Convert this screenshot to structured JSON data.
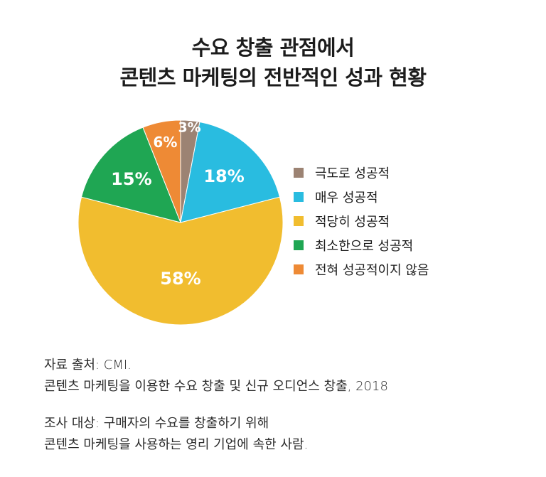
{
  "title": {
    "line1": "수요 창출 관점에서",
    "line2": "콘텐츠 마케팅의 전반적인 성과 현황"
  },
  "chart_data": {
    "type": "pie",
    "title": "수요 창출 관점에서 콘텐츠 마케팅의 전반적인 성과 현황",
    "unit": "%",
    "legend_position": "right",
    "slices": [
      {
        "label": "극도로 성공적",
        "value": 3,
        "display": "3%",
        "color": "#9c8373"
      },
      {
        "label": "매우 성공적",
        "value": 18,
        "display": "18%",
        "color": "#29bce0"
      },
      {
        "label": "적당히 성공적",
        "value": 58,
        "display": "58%",
        "color": "#f1bd2f"
      },
      {
        "label": "최소한으로 성공적",
        "value": 15,
        "display": "15%",
        "color": "#1fa653"
      },
      {
        "label": "전혀 성공적이지 않음",
        "value": 6,
        "display": "6%",
        "color": "#ee8a35"
      }
    ]
  },
  "source": {
    "line1": "자료 출처: CMI.",
    "line2": "콘텐츠 마케팅을 이용한 수요 창출 및 신규 오디언스 창출, 2018",
    "line3": "조사 대상: 구매자의 수요를 창출하기 위해",
    "line4": "콘텐츠 마케팅을 사용하는 영리 기업에 속한 사람."
  }
}
